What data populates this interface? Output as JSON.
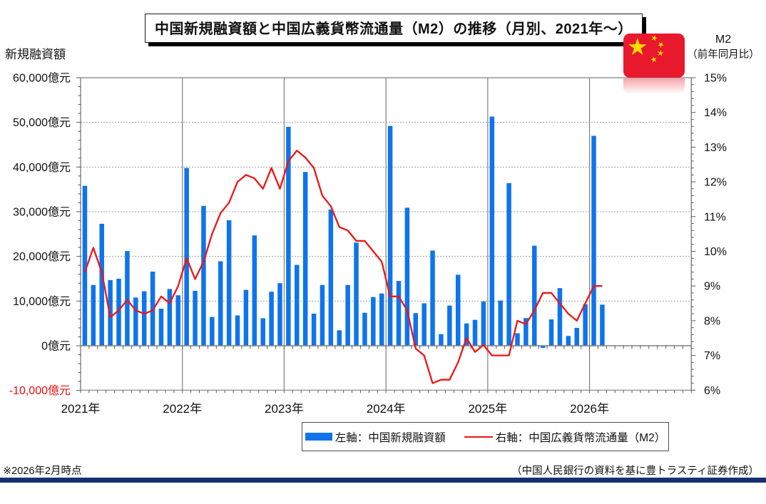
{
  "title": {
    "text": "中国新規融資額と中国広義貨幣流通量（M2）の推移（月別、2021年～）"
  },
  "left_axis": {
    "title": "新規融資額"
  },
  "right_axis": {
    "title_line1": "M2",
    "title_line2": "（前年同月比）"
  },
  "legend": {
    "bars_label": "左軸：中国新規融資額",
    "line_label": "右軸：中国広義貨幣流通量（M2）"
  },
  "footnotes": {
    "left": "※2026年2月時点",
    "right": "（中国人民銀行の資料を基に豊トラスティ証券作成）"
  },
  "flag": {
    "name": "china-flag"
  },
  "colors": {
    "bar_blue": "#0f74ec",
    "line_red": "#ed1515",
    "label_red": "#e80f0f",
    "flag_red": "#e8192c",
    "flag_yellow": "#ffde00",
    "navy_rule": "#16316e",
    "axis_gray": "#808080",
    "grid_gray": "#a0a0a0",
    "tick_gray": "#595959"
  },
  "chart_data": {
    "type": "bar",
    "combo": "bar+line",
    "title": "中国新規融資額と中国広義貨幣流通量（M2）の推移（月別、2021年～）",
    "xlabel": "",
    "ylabel_left": "新規融資額（億元）",
    "ylabel_right": "M2（前年同月比, %）",
    "left_ylim": [
      -10000,
      60000
    ],
    "right_ylim": [
      6,
      15
    ],
    "grid": "horizontal-dotted, vertical-solid-at-years",
    "legend_position": "bottom",
    "left_tick_labels": [
      "60,000億元",
      "50,000億元",
      "40,000億元",
      "30,000億元",
      "20,000億元",
      "10,000億元",
      "0億元",
      "-10,000億元"
    ],
    "left_tick_values": [
      60000,
      50000,
      40000,
      30000,
      20000,
      10000,
      0,
      -10000
    ],
    "right_tick_labels": [
      "15%",
      "14%",
      "13%",
      "12%",
      "11%",
      "10%",
      "9%",
      "8%",
      "7%",
      "6%"
    ],
    "right_tick_values": [
      15,
      14,
      13,
      12,
      11,
      10,
      9,
      8,
      7,
      6
    ],
    "year_labels": [
      "2021年",
      "2022年",
      "2023年",
      "2024年",
      "2025年",
      "2026年"
    ],
    "categories": [
      "2021-01",
      "2021-02",
      "2021-03",
      "2021-04",
      "2021-05",
      "2021-06",
      "2021-07",
      "2021-08",
      "2021-09",
      "2021-10",
      "2021-11",
      "2021-12",
      "2022-01",
      "2022-02",
      "2022-03",
      "2022-04",
      "2022-05",
      "2022-06",
      "2022-07",
      "2022-08",
      "2022-09",
      "2022-10",
      "2022-11",
      "2022-12",
      "2023-01",
      "2023-02",
      "2023-03",
      "2023-04",
      "2023-05",
      "2023-06",
      "2023-07",
      "2023-08",
      "2023-09",
      "2023-10",
      "2023-11",
      "2023-12",
      "2024-01",
      "2024-02",
      "2024-03",
      "2024-04",
      "2024-05",
      "2024-06",
      "2024-07",
      "2024-08",
      "2024-09",
      "2024-10",
      "2024-11",
      "2024-12",
      "2025-01",
      "2025-02",
      "2025-03",
      "2025-04",
      "2025-05",
      "2025-06",
      "2025-07",
      "2025-08",
      "2025-09",
      "2025-10",
      "2025-11",
      "2025-12",
      "2026-01",
      "2026-02"
    ],
    "series": [
      {
        "name": "左軸：中国新規融資額",
        "type": "bar",
        "axis": "left",
        "unit": "億元",
        "values": [
          35800,
          13600,
          27300,
          14700,
          15000,
          21200,
          10800,
          12200,
          16600,
          8300,
          12700,
          11300,
          39800,
          12300,
          31300,
          6450,
          18900,
          28100,
          6790,
          12500,
          24700,
          6150,
          12100,
          14000,
          49000,
          18100,
          38900,
          7190,
          13600,
          30500,
          3460,
          13600,
          23100,
          7380,
          10900,
          11700,
          49200,
          14500,
          30900,
          7300,
          9500,
          21300,
          2600,
          9000,
          15900,
          5000,
          5800,
          9900,
          51300,
          10100,
          36400,
          2800,
          6200,
          22400,
          -500,
          5900,
          12900,
          2200,
          4000,
          9300,
          47000,
          9200
        ]
      },
      {
        "name": "右軸：中国広義貨幣流通量（M2）",
        "type": "line",
        "axis": "right",
        "unit": "%",
        "values": [
          9.4,
          10.1,
          9.4,
          8.1,
          8.3,
          8.6,
          8.3,
          8.2,
          8.3,
          8.7,
          8.5,
          9.0,
          9.8,
          9.2,
          9.7,
          10.5,
          11.1,
          11.4,
          12.0,
          12.2,
          12.1,
          11.8,
          12.4,
          11.8,
          12.6,
          12.9,
          12.7,
          12.4,
          11.6,
          11.3,
          10.7,
          10.6,
          10.3,
          10.3,
          10.0,
          9.7,
          8.7,
          8.7,
          8.3,
          7.2,
          7.0,
          6.2,
          6.3,
          6.3,
          6.8,
          7.5,
          7.1,
          7.3,
          7.0,
          7.0,
          7.0,
          8.0,
          7.9,
          8.3,
          8.8,
          8.8,
          8.5,
          8.2,
          8.0,
          8.5,
          9.0,
          9.0
        ]
      }
    ]
  }
}
